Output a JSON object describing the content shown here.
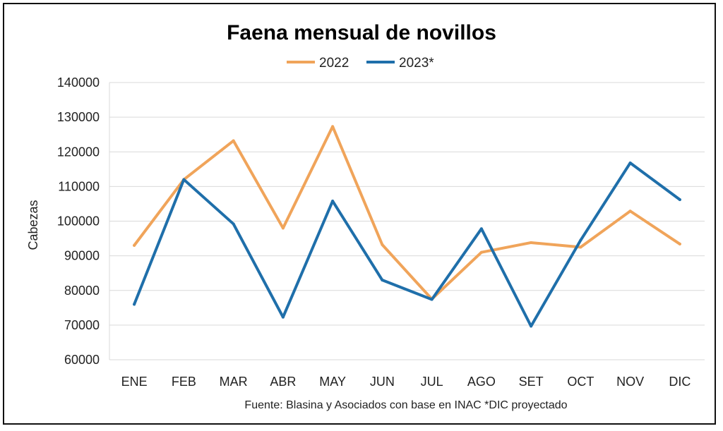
{
  "chart_data": {
    "type": "line",
    "title": "Faena mensual de novillos",
    "xlabel": "",
    "ylabel": "Cabezas",
    "categories": [
      "ENE",
      "FEB",
      "MAR",
      "ABR",
      "MAY",
      "JUN",
      "JUL",
      "AGO",
      "SET",
      "OCT",
      "NOV",
      "DIC"
    ],
    "ylim": [
      60000,
      140000
    ],
    "yticks": [
      60000,
      70000,
      80000,
      90000,
      100000,
      110000,
      120000,
      130000,
      140000
    ],
    "grid": true,
    "legend_position": "top",
    "series": [
      {
        "name": "2022",
        "color": "#F0A45A",
        "values": [
          93000,
          112000,
          123200,
          98000,
          127300,
          93200,
          77500,
          91000,
          93800,
          92500,
          102900,
          93400
        ]
      },
      {
        "name": "2023*",
        "color": "#1F6FAA",
        "values": [
          76000,
          112000,
          99200,
          72300,
          105800,
          83000,
          77400,
          97800,
          69700,
          94500,
          116800,
          106200
        ]
      }
    ],
    "source": "Fuente: Blasina y Asociados con base en INAC *DIC proyectado"
  }
}
